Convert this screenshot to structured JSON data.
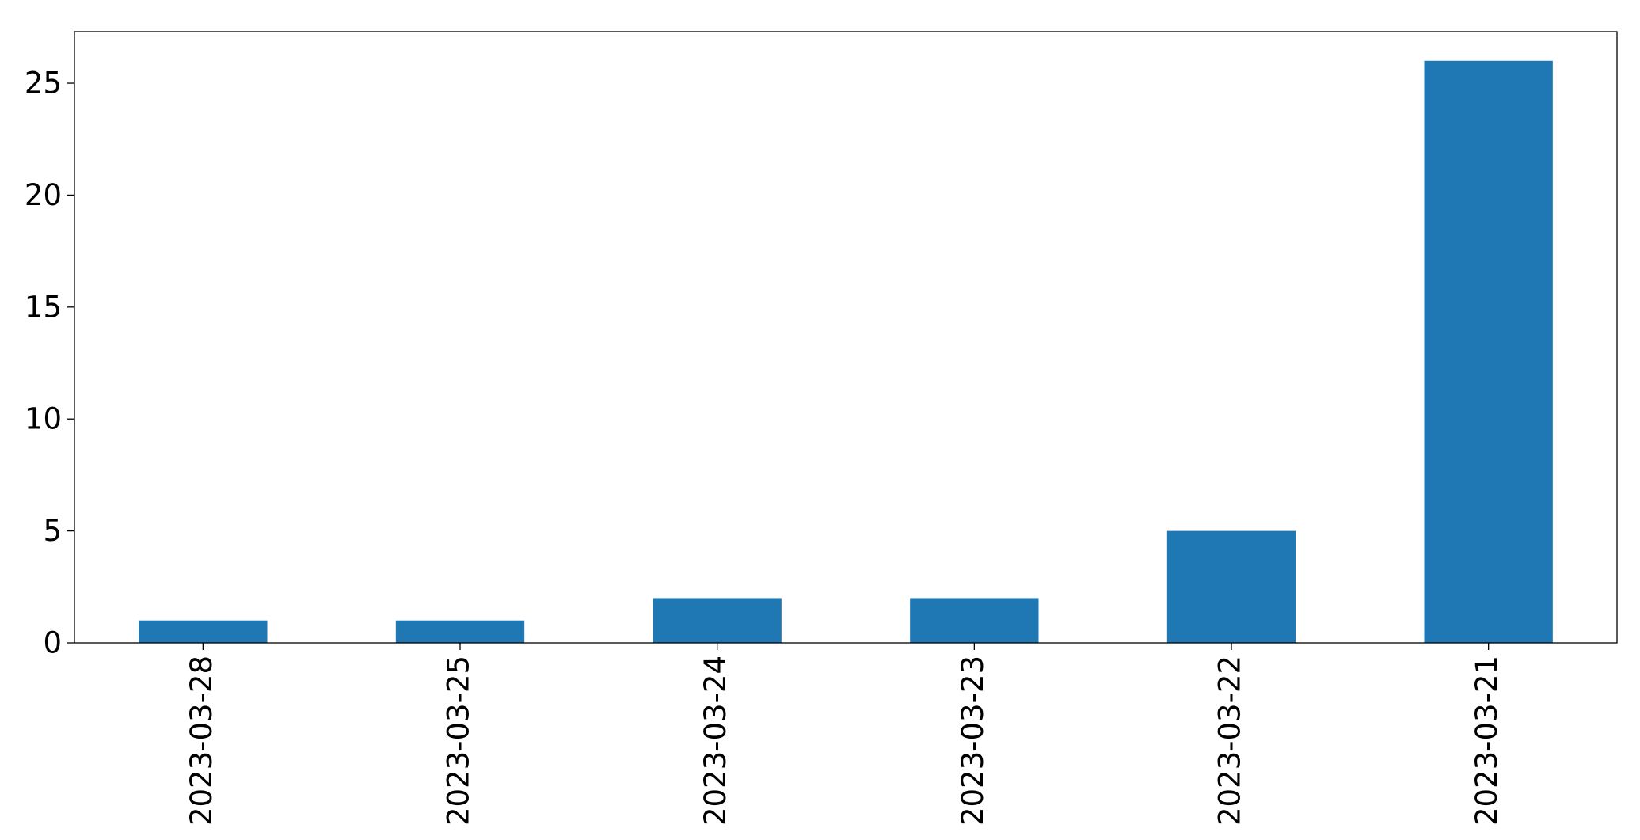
{
  "chart_data": {
    "type": "bar",
    "categories": [
      "2023-03-28",
      "2023-03-25",
      "2023-03-24",
      "2023-03-23",
      "2023-03-22",
      "2023-03-21"
    ],
    "values": [
      1,
      1,
      2,
      2,
      5,
      26
    ],
    "color": "#1f77b4",
    "ylim": [
      0,
      27.3
    ],
    "yticks": [
      0,
      5,
      10,
      15,
      20,
      25
    ],
    "grid": false
  }
}
